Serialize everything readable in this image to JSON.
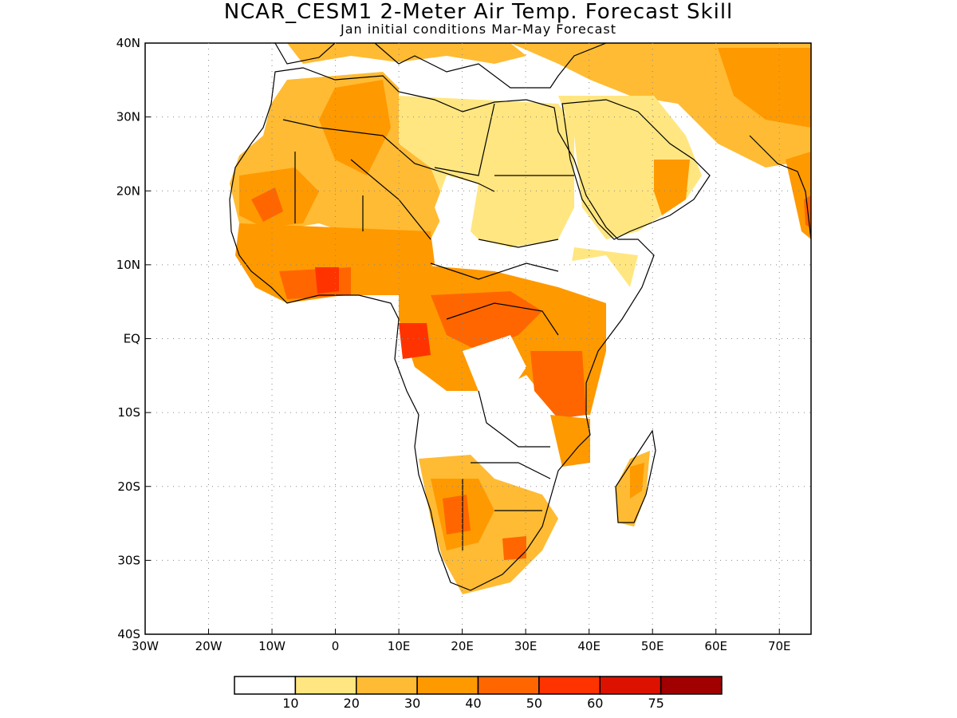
{
  "title": "NCAR_CESM1 2-Meter Air Temp. Forecast Skill",
  "subtitle": "Jan initial conditions  Mar-May Forecast",
  "map": {
    "lon_range": [
      -30,
      75
    ],
    "lat_range": [
      -40,
      40
    ],
    "lon_ticks": [
      -30,
      -20,
      -10,
      0,
      10,
      20,
      30,
      40,
      50,
      60,
      70
    ],
    "lon_tick_labels": [
      "30W",
      "20W",
      "10W",
      "0",
      "10E",
      "20E",
      "30E",
      "40E",
      "50E",
      "60E",
      "70E"
    ],
    "lat_ticks": [
      40,
      30,
      20,
      10,
      0,
      -10,
      -20,
      -30,
      -40
    ],
    "lat_tick_labels": [
      "40N",
      "30N",
      "20N",
      "10N",
      "EQ",
      "10S",
      "20S",
      "30S",
      "40S"
    ],
    "grid": "dotted"
  },
  "colorbar": {
    "colors": [
      "#ffffff",
      "#ffe680",
      "#ffbb33",
      "#ff9900",
      "#ff6600",
      "#ff3300",
      "#dd1100",
      "#a00000"
    ],
    "levels": [
      "10",
      "20",
      "30",
      "40",
      "50",
      "60",
      "75"
    ]
  }
}
